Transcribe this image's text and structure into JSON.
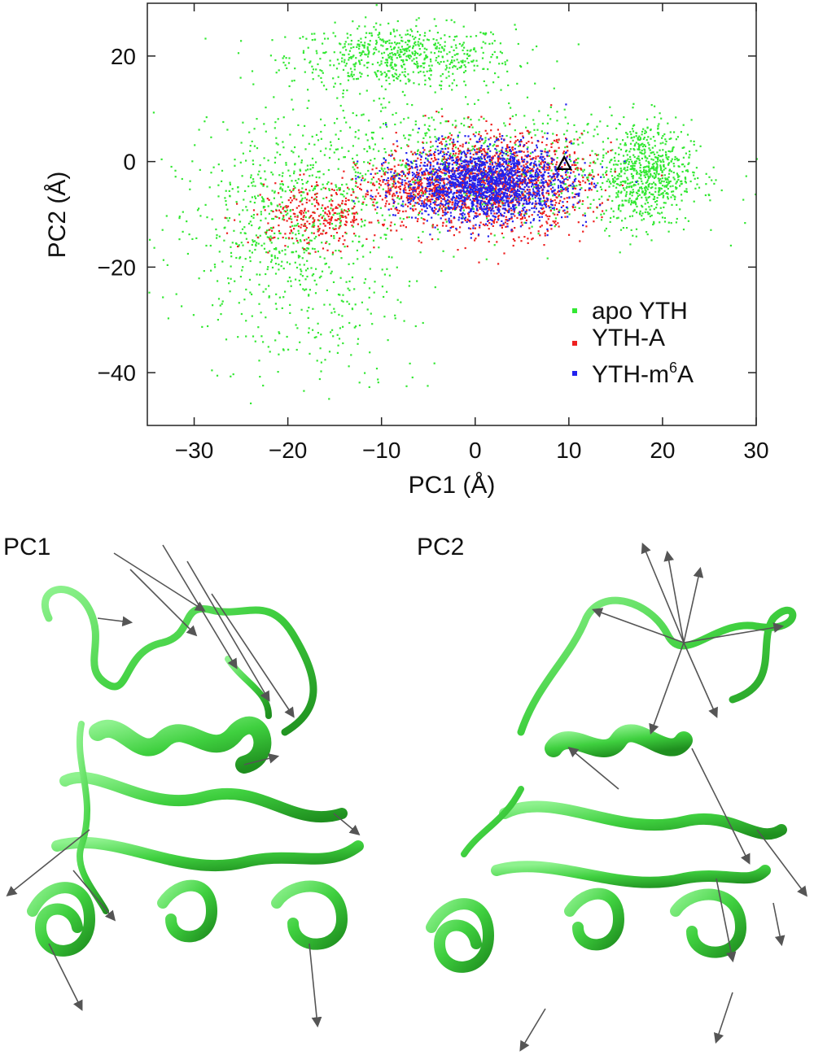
{
  "chart_data": {
    "type": "scatter",
    "xlabel": "PC1 (Å)",
    "ylabel": "PC2 (Å)",
    "xlim": [
      -35,
      30
    ],
    "ylim": [
      -50,
      30
    ],
    "xticks": [
      -30,
      -20,
      -10,
      0,
      10,
      20,
      30
    ],
    "yticks": [
      20,
      0,
      -20,
      -40
    ],
    "xtick_labels": [
      "−30",
      "−20",
      "−10",
      "0",
      "10",
      "20",
      "30"
    ],
    "ytick_labels": [
      "20",
      "0",
      "−20",
      "−40"
    ],
    "legend_position": "bottom-right",
    "series": [
      {
        "name": "apo YTH",
        "color": "#33e833",
        "clusters": [
          {
            "center": [
              -8,
              20
            ],
            "spread": [
              6,
              3
            ],
            "count": 650
          },
          {
            "center": [
              -20,
              -14
            ],
            "spread": [
              6,
              9
            ],
            "count": 650
          },
          {
            "center": [
              18,
              -2
            ],
            "spread": [
              2.5,
              5
            ],
            "count": 700
          },
          {
            "center": [
              0,
              -3
            ],
            "spread": [
              12,
              5
            ],
            "count": 550
          },
          {
            "center": [
              -5,
              5
            ],
            "spread": [
              10,
              5
            ],
            "count": 250
          },
          {
            "center": [
              -14,
              -35
            ],
            "spread": [
              6,
              6
            ],
            "count": 80
          }
        ]
      },
      {
        "name": "YTH-A",
        "color": "#ee2020",
        "clusters": [
          {
            "center": [
              -17,
              -10
            ],
            "spread": [
              3.5,
              3
            ],
            "count": 300
          },
          {
            "center": [
              -7,
              -5
            ],
            "spread": [
              2.5,
              2.5
            ],
            "count": 250
          },
          {
            "center": [
              2,
              -4
            ],
            "spread": [
              5,
              4.5
            ],
            "count": 1400
          }
        ]
      },
      {
        "name": "YTH-m6A",
        "color": "#2222ee",
        "clusters": [
          {
            "center": [
              1,
              -4
            ],
            "spread": [
              4.5,
              3.5
            ],
            "count": 1800
          }
        ]
      }
    ],
    "annotations": [
      {
        "marker": "triangle",
        "x": 9.5,
        "y": -0.5
      }
    ]
  },
  "legend": {
    "entries": [
      {
        "label": "apo YTH",
        "color": "#33e833"
      },
      {
        "label": "YTH-A",
        "color": "#ee2020"
      },
      {
        "label": "YTH-m6A",
        "color": "#2222ee",
        "label_base": "YTH-m",
        "label_sup": "6",
        "label_tail": "A"
      }
    ]
  },
  "panels": {
    "left_title": "PC1",
    "right_title": "PC2"
  }
}
